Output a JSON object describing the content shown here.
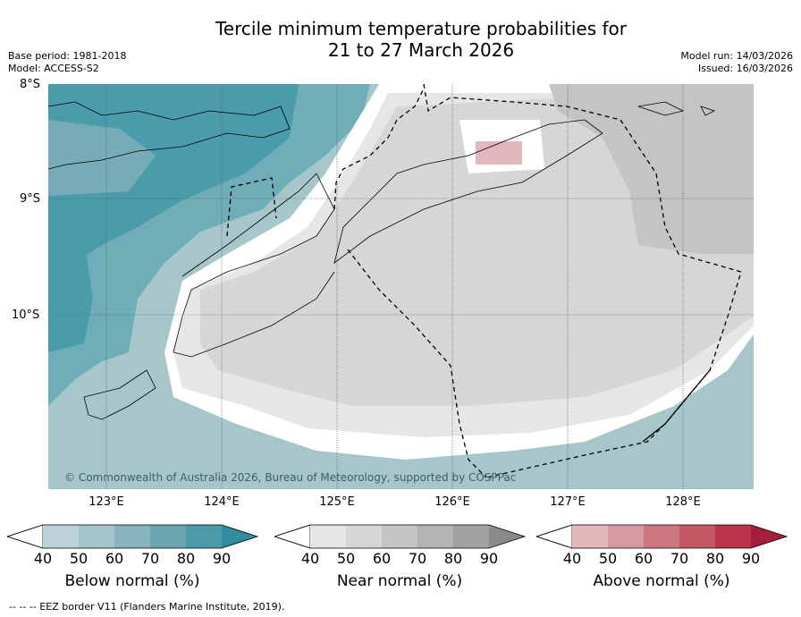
{
  "title_line1": "Tercile minimum temperature probabilities for",
  "title_line2": "21 to 27 March 2026",
  "meta_left": [
    "Base period: 1981-2018",
    "Model: ACCESS-S2"
  ],
  "meta_right": [
    "Model run: 14/03/2026",
    "Issued: 16/03/2026"
  ],
  "lat_labels": [
    "8°S",
    "9°S",
    "10°S"
  ],
  "lon_labels": [
    "123°E",
    "124°E",
    "125°E",
    "126°E",
    "127°E",
    "128°E"
  ],
  "copyright": "© Commonwealth of Australia 2026, Bureau of Meteorology, supported by COSPPac",
  "colorbars": [
    {
      "label": "Below normal (%)",
      "ticks": [
        "40",
        "50",
        "60",
        "70",
        "80",
        "90"
      ],
      "colors": [
        "#bdd3d9",
        "#a3c4cb",
        "#87b4be",
        "#6aa6b2",
        "#4a9aa8",
        "#2f8d9e"
      ]
    },
    {
      "label": "Near normal (%)",
      "ticks": [
        "40",
        "50",
        "60",
        "70",
        "80",
        "90"
      ],
      "colors": [
        "#e6e6e6",
        "#d6d6d6",
        "#c4c4c4",
        "#b3b3b3",
        "#a1a1a1",
        "#8a8a8a"
      ]
    },
    {
      "label": "Above normal (%)",
      "ticks": [
        "40",
        "50",
        "60",
        "70",
        "80",
        "90"
      ],
      "colors": [
        "#e2b7bd",
        "#d89aa2",
        "#cc7780",
        "#c45864",
        "#b9334b",
        "#a81d3c"
      ]
    }
  ],
  "footer": "--  --  -- EEZ border V11 (Flanders Marine Institute, 2019)."
}
